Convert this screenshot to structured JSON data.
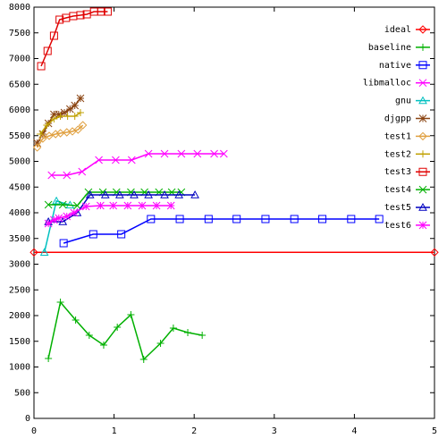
{
  "chart_data": {
    "type": "line",
    "xlim": [
      0,
      5
    ],
    "xticks": [
      0,
      1,
      2,
      3,
      4,
      5
    ],
    "ylim": [
      0,
      8000
    ],
    "yticks": [
      0,
      500,
      1000,
      1500,
      2000,
      2500,
      3000,
      3500,
      4000,
      4500,
      5000,
      5500,
      6000,
      6500,
      7000,
      7500,
      8000
    ],
    "legend": "upper right",
    "series": [
      {
        "name": "ideal",
        "color": "#ff0000",
        "marker": "diamond",
        "x": [
          0,
          5
        ],
        "values": [
          3230,
          3230
        ]
      },
      {
        "name": "baseline",
        "color": "#00b000",
        "marker": "plus",
        "x": [
          0.18,
          0.33,
          0.52,
          0.69,
          0.87,
          1.04,
          1.21,
          1.37,
          1.58,
          1.74,
          1.92,
          2.1
        ],
        "values": [
          1165,
          2260,
          1913,
          1617,
          1426,
          1774,
          2017,
          1148,
          1461,
          1757,
          1670,
          1617
        ]
      },
      {
        "name": "native",
        "color": "#0000ff",
        "marker": "square",
        "x": [
          0.37,
          0.74,
          1.09,
          1.46,
          1.82,
          2.18,
          2.53,
          2.89,
          3.25,
          3.6,
          3.96,
          4.31
        ],
        "values": [
          3409,
          3583,
          3583,
          3878,
          3878,
          3878,
          3878,
          3878,
          3878,
          3878,
          3878,
          3878
        ]
      },
      {
        "name": "libmalloc",
        "color": "#ff00ff",
        "marker": "x",
        "x": [
          0.22,
          0.41,
          0.6,
          0.81,
          1.02,
          1.22,
          1.43,
          1.63,
          1.84,
          2.04,
          2.25,
          2.37
        ],
        "values": [
          4730,
          4730,
          4800,
          5026,
          5026,
          5026,
          5148,
          5148,
          5148,
          5148,
          5148,
          5148
        ]
      },
      {
        "name": "gnu",
        "color": "#00c0c0",
        "marker": "triangle",
        "x": [
          0.13,
          0.28,
          0.45
        ],
        "values": [
          3230,
          4230,
          4150
        ]
      },
      {
        "name": "djgpp",
        "color": "#8b4513",
        "marker": "star",
        "x": [
          0.04,
          0.11,
          0.18,
          0.25,
          0.31,
          0.38,
          0.45,
          0.51,
          0.58
        ],
        "values": [
          5357,
          5530,
          5739,
          5913,
          5913,
          5948,
          6017,
          6087,
          6226
        ]
      },
      {
        "name": "test1",
        "color": "#e0a040",
        "marker": "diamond",
        "x": [
          0.04,
          0.11,
          0.19,
          0.27,
          0.33,
          0.41,
          0.48,
          0.55,
          0.61
        ],
        "values": [
          5270,
          5443,
          5496,
          5530,
          5548,
          5565,
          5583,
          5617,
          5704
        ]
      },
      {
        "name": "test2",
        "color": "#c0a000",
        "marker": "plus",
        "x": [
          0.08,
          0.16,
          0.25,
          0.33,
          0.42,
          0.51,
          0.58
        ],
        "values": [
          5530,
          5704,
          5826,
          5878,
          5878,
          5878,
          5948
        ]
      },
      {
        "name": "test3",
        "color": "#e00000",
        "marker": "square",
        "x": [
          0.09,
          0.17,
          0.25,
          0.32,
          0.4,
          0.49,
          0.58,
          0.66,
          0.75,
          0.84,
          0.92
        ],
        "values": [
          6852,
          7148,
          7443,
          7757,
          7791,
          7826,
          7843,
          7861,
          7913,
          7913,
          7913
        ]
      },
      {
        "name": "test4",
        "color": "#00b000",
        "marker": "x",
        "x": [
          0.18,
          0.36,
          0.54,
          0.68,
          0.86,
          1.03,
          1.21,
          1.38,
          1.56,
          1.72,
          1.84
        ],
        "values": [
          4157,
          4157,
          4139,
          4400,
          4400,
          4400,
          4400,
          4400,
          4400,
          4400,
          4400
        ]
      },
      {
        "name": "test5",
        "color": "#0000c0",
        "marker": "triangle",
        "x": [
          0.18,
          0.36,
          0.54,
          0.7,
          0.89,
          1.07,
          1.25,
          1.43,
          1.63,
          1.81,
          2.01
        ],
        "values": [
          3826,
          3826,
          4000,
          4348,
          4348,
          4348,
          4348,
          4348,
          4348,
          4348,
          4348
        ]
      },
      {
        "name": "test6",
        "color": "#ff00ff",
        "marker": "star",
        "x": [
          0.18,
          0.25,
          0.31,
          0.41,
          0.5,
          0.65,
          0.83,
          0.99,
          1.17,
          1.35,
          1.53,
          1.71
        ],
        "values": [
          3791,
          3861,
          3896,
          3930,
          4000,
          4122,
          4139,
          4139,
          4139,
          4139,
          4139,
          4139
        ]
      }
    ]
  }
}
